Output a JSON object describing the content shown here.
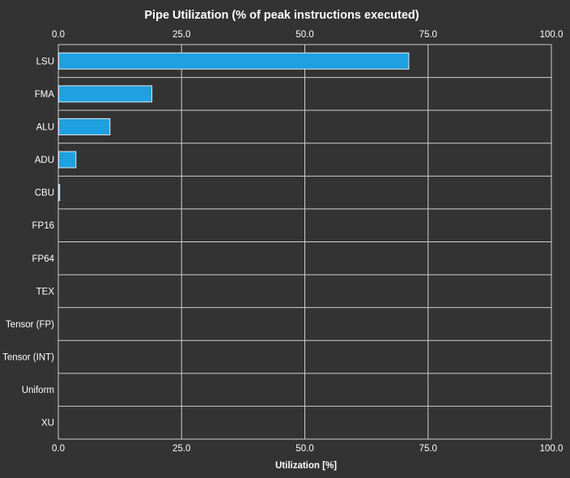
{
  "chart_data": {
    "type": "bar",
    "orientation": "horizontal",
    "title": "Pipe Utilization (% of peak instructions executed)",
    "xlabel": "Utilization [%]",
    "ylabel": "",
    "xlim": [
      0,
      100
    ],
    "x_ticks": [
      "0.0",
      "25.0",
      "50.0",
      "75.0",
      "100.0"
    ],
    "x_tick_values": [
      0,
      25,
      50,
      75,
      100
    ],
    "grid": true,
    "categories": [
      "LSU",
      "FMA",
      "ALU",
      "ADU",
      "CBU",
      "FP16",
      "FP64",
      "TEX",
      "Tensor (FP)",
      "Tensor (INT)",
      "Uniform",
      "XU"
    ],
    "values": [
      71.0,
      18.9,
      10.4,
      3.5,
      0.2,
      0,
      0,
      0,
      0,
      0,
      0,
      0
    ]
  },
  "colors": {
    "background": "#333333",
    "bar_fill": "#1fa0e0",
    "bar_stroke": "#d8ecf6",
    "grid": "#cfcfcf",
    "text": "#ffffff"
  }
}
